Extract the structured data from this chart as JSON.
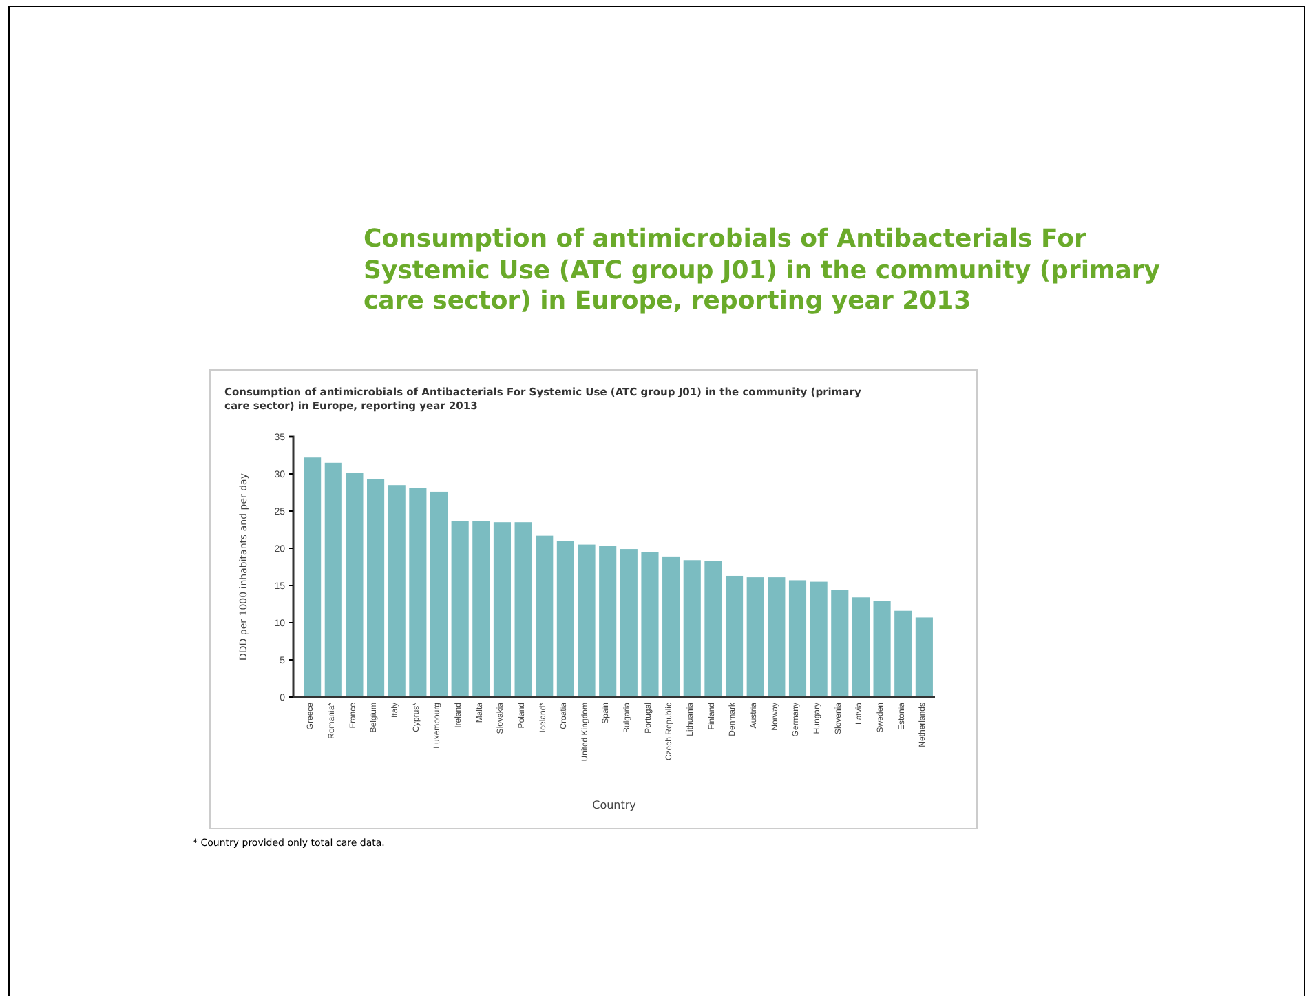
{
  "chart_data": {
    "type": "bar",
    "title": "Consumption of antimicrobials of Antibacterials For Systemic Use (ATC group J01) in the community (primary care sector) in Europe, reporting year 2013",
    "subtitle": "Consumption of antimicrobials of Antibacterials For Systemic Use (ATC group J01) in the community (primary care sector) in Europe, reporting year 2013",
    "xlabel": "Country",
    "ylabel": "DDD per 1000 inhabitants and per day",
    "categories": [
      "Greece",
      "Romania*",
      "France",
      "Belgium",
      "Italy",
      "Cyprus*",
      "Luxembourg",
      "Ireland",
      "Malta",
      "Slovakia",
      "Poland",
      "Iceland*",
      "Croatia",
      "United Kingdom",
      "Spain",
      "Bulgaria",
      "Portugal",
      "Czech Republic",
      "Lithuania",
      "Finland",
      "Denmark",
      "Austria",
      "Norway",
      "Germany",
      "Hungary",
      "Slovenia",
      "Latvia",
      "Sweden",
      "Estonia",
      "Netherlands"
    ],
    "values": [
      32.2,
      31.5,
      30.1,
      29.3,
      28.5,
      28.1,
      27.6,
      23.7,
      23.7,
      23.5,
      23.5,
      21.7,
      21.0,
      20.5,
      20.3,
      19.9,
      19.5,
      18.9,
      18.4,
      18.3,
      16.3,
      16.1,
      16.1,
      15.7,
      15.5,
      14.4,
      13.4,
      12.9,
      11.6,
      10.7
    ],
    "color": "#7bbcc1",
    "ylim": [
      0,
      35
    ],
    "yticks": [
      0,
      5,
      10,
      15,
      20,
      25,
      30,
      35
    ],
    "grid": false,
    "annotations": [
      "* Country provided only total care data."
    ]
  }
}
